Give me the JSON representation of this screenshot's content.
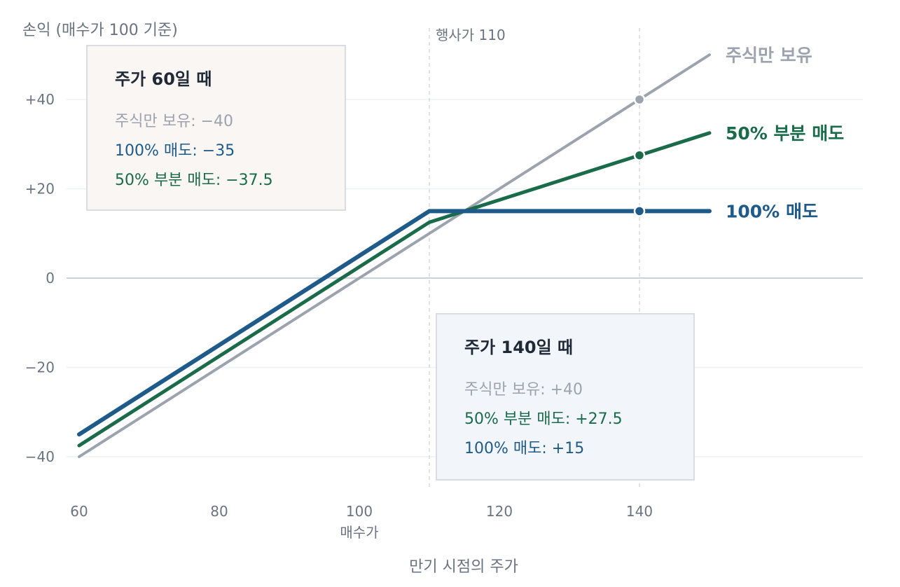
{
  "chart_data": {
    "type": "line",
    "ylabel": "손익 (매수가 100 기준)",
    "xlabel": "만기 시점의 주가",
    "xlim": [
      60,
      150
    ],
    "ylim": [
      -50,
      50
    ],
    "x_ticks": [
      "60",
      "80",
      "100",
      "120",
      "140"
    ],
    "x_tick_values": [
      60,
      80,
      100,
      120,
      140
    ],
    "x_sublabel": {
      "x": 100,
      "label": "매수가"
    },
    "y_ticks": [
      "+40",
      "+20",
      "0",
      "−20",
      "−40"
    ],
    "y_tick_values": [
      40,
      20,
      0,
      -20,
      -40
    ],
    "grid": true,
    "series": [
      {
        "name": "주식만 보유",
        "color": "#9ca3af",
        "x": [
          60,
          150
        ],
        "y": [
          -40,
          50
        ]
      },
      {
        "name": "50% 부분 매도",
        "color": "#1a6b4a",
        "x": [
          60,
          110,
          150
        ],
        "y": [
          -37.5,
          12.5,
          32.5
        ]
      },
      {
        "name": "100% 매도",
        "color": "#1e5a8a",
        "x": [
          60,
          110,
          150
        ],
        "y": [
          -35,
          15,
          15
        ]
      }
    ],
    "reference_lines": [
      {
        "x": 110,
        "label": "행사가 110"
      },
      {
        "x": 140,
        "label": ""
      }
    ],
    "markers": [
      {
        "x": 140,
        "y": 40,
        "series": "주식만 보유"
      },
      {
        "x": 140,
        "y": 27.5,
        "series": "50% 부분 매도"
      },
      {
        "x": 140,
        "y": 15,
        "series": "100% 매도"
      }
    ],
    "callouts": [
      {
        "title": "주가 60일 때",
        "style": "warm",
        "lines": [
          {
            "text": "주식만 보유: −40",
            "color": "#9ca3af"
          },
          {
            "text": "100% 매도: −35",
            "color": "#1e5a8a"
          },
          {
            "text": "50% 부분 매도: −37.5",
            "color": "#1a6b4a"
          }
        ]
      },
      {
        "title": "주가 140일 때",
        "style": "cool",
        "lines": [
          {
            "text": "주식만 보유: +40",
            "color": "#9ca3af"
          },
          {
            "text": "50% 부분 매도: +27.5",
            "color": "#1a6b4a"
          },
          {
            "text": "100% 매도: +15",
            "color": "#1e5a8a"
          }
        ]
      }
    ]
  }
}
